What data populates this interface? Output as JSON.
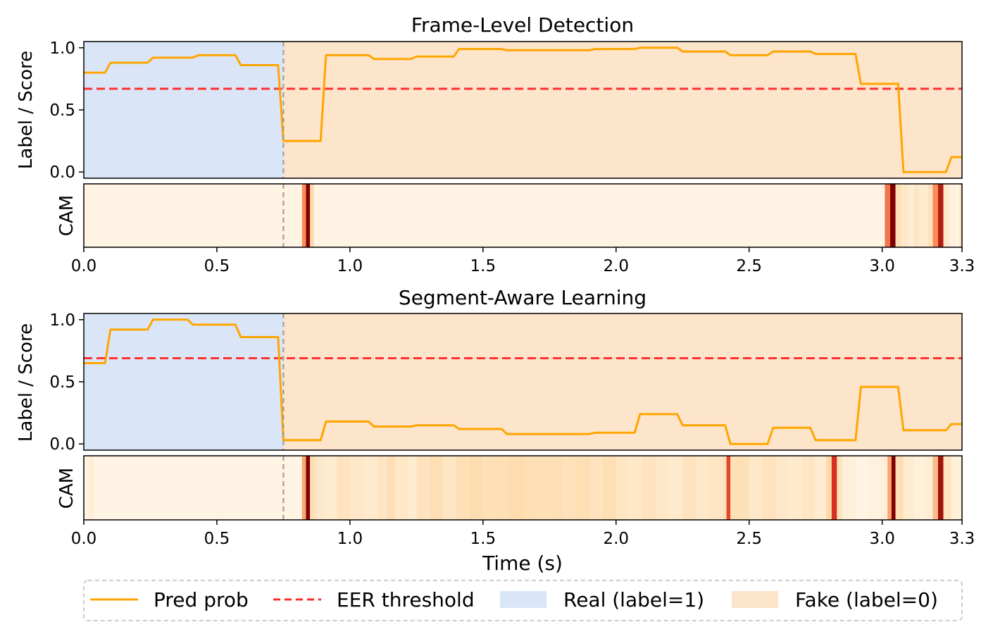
{
  "chart_data": [
    {
      "type": "line",
      "title": "Frame-Level Detection",
      "ylabel": "Label / Score",
      "cam_label": "CAM",
      "xlabel": "",
      "xlim": [
        0,
        3.3
      ],
      "ylim": [
        -0.05,
        1.05
      ],
      "x_ticks": [
        "0.0",
        "0.5",
        "1.0",
        "1.5",
        "2.0",
        "2.5",
        "3.0",
        "3.3"
      ],
      "y_ticks": [
        "0.0",
        "0.5",
        "1.0"
      ],
      "real_region": [
        0,
        0.75
      ],
      "fake_region": [
        0.75,
        3.3
      ],
      "boundary": 0.75,
      "eer_threshold": 0.67,
      "series": [
        {
          "name": "Pred prob",
          "points": [
            [
              0.0,
              0.8
            ],
            [
              0.08,
              0.8
            ],
            [
              0.1,
              0.88
            ],
            [
              0.24,
              0.88
            ],
            [
              0.26,
              0.92
            ],
            [
              0.41,
              0.92
            ],
            [
              0.43,
              0.94
            ],
            [
              0.57,
              0.94
            ],
            [
              0.59,
              0.86
            ],
            [
              0.73,
              0.86
            ],
            [
              0.75,
              0.25
            ],
            [
              0.89,
              0.25
            ],
            [
              0.91,
              0.94
            ],
            [
              1.07,
              0.94
            ],
            [
              1.09,
              0.91
            ],
            [
              1.23,
              0.91
            ],
            [
              1.25,
              0.93
            ],
            [
              1.39,
              0.93
            ],
            [
              1.41,
              0.99
            ],
            [
              1.57,
              0.99
            ],
            [
              1.59,
              0.98
            ],
            [
              1.74,
              0.98
            ],
            [
              1.76,
              0.98
            ],
            [
              1.9,
              0.98
            ],
            [
              1.92,
              0.99
            ],
            [
              2.07,
              0.99
            ],
            [
              2.09,
              1.0
            ],
            [
              2.23,
              1.0
            ],
            [
              2.25,
              0.97
            ],
            [
              2.41,
              0.97
            ],
            [
              2.43,
              0.94
            ],
            [
              2.57,
              0.94
            ],
            [
              2.59,
              0.97
            ],
            [
              2.73,
              0.97
            ],
            [
              2.75,
              0.95
            ],
            [
              2.9,
              0.95
            ],
            [
              2.92,
              0.71
            ],
            [
              3.06,
              0.71
            ],
            [
              3.08,
              0.0
            ],
            [
              3.24,
              0.0
            ],
            [
              3.26,
              0.12
            ],
            [
              3.3,
              0.12
            ]
          ]
        }
      ],
      "cam": [
        [
          0.0,
          0.05
        ],
        [
          0.81,
          0.05
        ],
        [
          0.82,
          0.55
        ],
        [
          0.835,
          1.0
        ],
        [
          0.85,
          0.35
        ],
        [
          0.865,
          0.05
        ],
        [
          3.0,
          0.05
        ],
        [
          3.01,
          0.6
        ],
        [
          3.03,
          1.0
        ],
        [
          3.05,
          0.3
        ],
        [
          3.07,
          0.2
        ],
        [
          3.1,
          0.12
        ],
        [
          3.12,
          0.22
        ],
        [
          3.14,
          0.15
        ],
        [
          3.17,
          0.25
        ],
        [
          3.19,
          0.55
        ],
        [
          3.21,
          0.85
        ],
        [
          3.23,
          0.2
        ],
        [
          3.25,
          0.08
        ],
        [
          3.28,
          0.05
        ],
        [
          3.29,
          0.25
        ],
        [
          3.3,
          0.05
        ]
      ]
    },
    {
      "type": "line",
      "title": "Segment-Aware Learning",
      "ylabel": "Label / Score",
      "cam_label": "CAM",
      "xlabel": "Time (s)",
      "xlim": [
        0,
        3.3
      ],
      "ylim": [
        -0.05,
        1.05
      ],
      "x_ticks": [
        "0.0",
        "0.5",
        "1.0",
        "1.5",
        "2.0",
        "2.5",
        "3.0",
        "3.3"
      ],
      "y_ticks": [
        "0.0",
        "0.5",
        "1.0"
      ],
      "real_region": [
        0,
        0.75
      ],
      "fake_region": [
        0.75,
        3.3
      ],
      "boundary": 0.75,
      "eer_threshold": 0.69,
      "series": [
        {
          "name": "Pred prob",
          "points": [
            [
              0.0,
              0.65
            ],
            [
              0.08,
              0.65
            ],
            [
              0.1,
              0.92
            ],
            [
              0.24,
              0.92
            ],
            [
              0.26,
              1.0
            ],
            [
              0.39,
              1.0
            ],
            [
              0.41,
              0.96
            ],
            [
              0.57,
              0.96
            ],
            [
              0.59,
              0.86
            ],
            [
              0.73,
              0.86
            ],
            [
              0.75,
              0.03
            ],
            [
              0.89,
              0.03
            ],
            [
              0.91,
              0.18
            ],
            [
              1.07,
              0.18
            ],
            [
              1.09,
              0.14
            ],
            [
              1.23,
              0.14
            ],
            [
              1.25,
              0.15
            ],
            [
              1.39,
              0.15
            ],
            [
              1.41,
              0.12
            ],
            [
              1.57,
              0.12
            ],
            [
              1.59,
              0.08
            ],
            [
              1.74,
              0.08
            ],
            [
              1.76,
              0.08
            ],
            [
              1.9,
              0.08
            ],
            [
              1.92,
              0.09
            ],
            [
              2.07,
              0.09
            ],
            [
              2.09,
              0.24
            ],
            [
              2.23,
              0.24
            ],
            [
              2.25,
              0.15
            ],
            [
              2.41,
              0.15
            ],
            [
              2.43,
              0.0
            ],
            [
              2.57,
              0.0
            ],
            [
              2.59,
              0.13
            ],
            [
              2.73,
              0.13
            ],
            [
              2.75,
              0.03
            ],
            [
              2.9,
              0.03
            ],
            [
              2.92,
              0.46
            ],
            [
              3.06,
              0.46
            ],
            [
              3.08,
              0.11
            ],
            [
              3.24,
              0.11
            ],
            [
              3.26,
              0.16
            ],
            [
              3.3,
              0.16
            ]
          ]
        }
      ],
      "cam": [
        [
          0.0,
          0.05
        ],
        [
          0.02,
          0.12
        ],
        [
          0.04,
          0.05
        ],
        [
          0.81,
          0.05
        ],
        [
          0.82,
          0.5
        ],
        [
          0.835,
          1.0
        ],
        [
          0.85,
          0.3
        ],
        [
          0.87,
          0.2
        ],
        [
          0.9,
          0.15
        ],
        [
          0.95,
          0.25
        ],
        [
          1.0,
          0.2
        ],
        [
          1.05,
          0.18
        ],
        [
          1.1,
          0.22
        ],
        [
          1.14,
          0.3
        ],
        [
          1.17,
          0.2
        ],
        [
          1.22,
          0.15
        ],
        [
          1.25,
          0.25
        ],
        [
          1.3,
          0.3
        ],
        [
          1.35,
          0.22
        ],
        [
          1.4,
          0.28
        ],
        [
          1.45,
          0.32
        ],
        [
          1.5,
          0.28
        ],
        [
          1.55,
          0.3
        ],
        [
          1.6,
          0.32
        ],
        [
          1.65,
          0.3
        ],
        [
          1.7,
          0.28
        ],
        [
          1.75,
          0.3
        ],
        [
          1.8,
          0.27
        ],
        [
          1.85,
          0.3
        ],
        [
          1.9,
          0.25
        ],
        [
          1.95,
          0.3
        ],
        [
          2.0,
          0.22
        ],
        [
          2.05,
          0.2
        ],
        [
          2.1,
          0.25
        ],
        [
          2.15,
          0.2
        ],
        [
          2.2,
          0.18
        ],
        [
          2.25,
          0.25
        ],
        [
          2.3,
          0.2
        ],
        [
          2.35,
          0.22
        ],
        [
          2.4,
          0.3
        ],
        [
          2.415,
          0.7
        ],
        [
          2.43,
          0.28
        ],
        [
          2.5,
          0.2
        ],
        [
          2.55,
          0.25
        ],
        [
          2.6,
          0.2
        ],
        [
          2.65,
          0.18
        ],
        [
          2.7,
          0.22
        ],
        [
          2.75,
          0.15
        ],
        [
          2.79,
          0.35
        ],
        [
          2.81,
          0.75
        ],
        [
          2.83,
          0.25
        ],
        [
          2.85,
          0.1
        ],
        [
          2.9,
          0.05
        ],
        [
          2.95,
          0.08
        ],
        [
          3.0,
          0.12
        ],
        [
          3.02,
          0.5
        ],
        [
          3.035,
          1.0
        ],
        [
          3.05,
          0.3
        ],
        [
          3.08,
          0.15
        ],
        [
          3.12,
          0.1
        ],
        [
          3.16,
          0.12
        ],
        [
          3.19,
          0.45
        ],
        [
          3.21,
          0.9
        ],
        [
          3.23,
          0.25
        ],
        [
          3.26,
          0.1
        ],
        [
          3.3,
          0.05
        ]
      ]
    }
  ],
  "legend": {
    "items": [
      {
        "label": "Pred prob",
        "kind": "line",
        "color": "#ffa500"
      },
      {
        "label": "EER threshold",
        "kind": "dashed",
        "color": "#ff2a2a"
      },
      {
        "label": "Real (label=1)",
        "kind": "patch",
        "color": "#dae6f8"
      },
      {
        "label": "Fake (label=0)",
        "kind": "patch",
        "color": "#fde5cc"
      }
    ]
  },
  "colors": {
    "pred": "#ffa500",
    "eer": "#ff3030",
    "real_bg": "#dae6f8",
    "fake_bg": "#fde5cc",
    "boundary": "#999999"
  }
}
